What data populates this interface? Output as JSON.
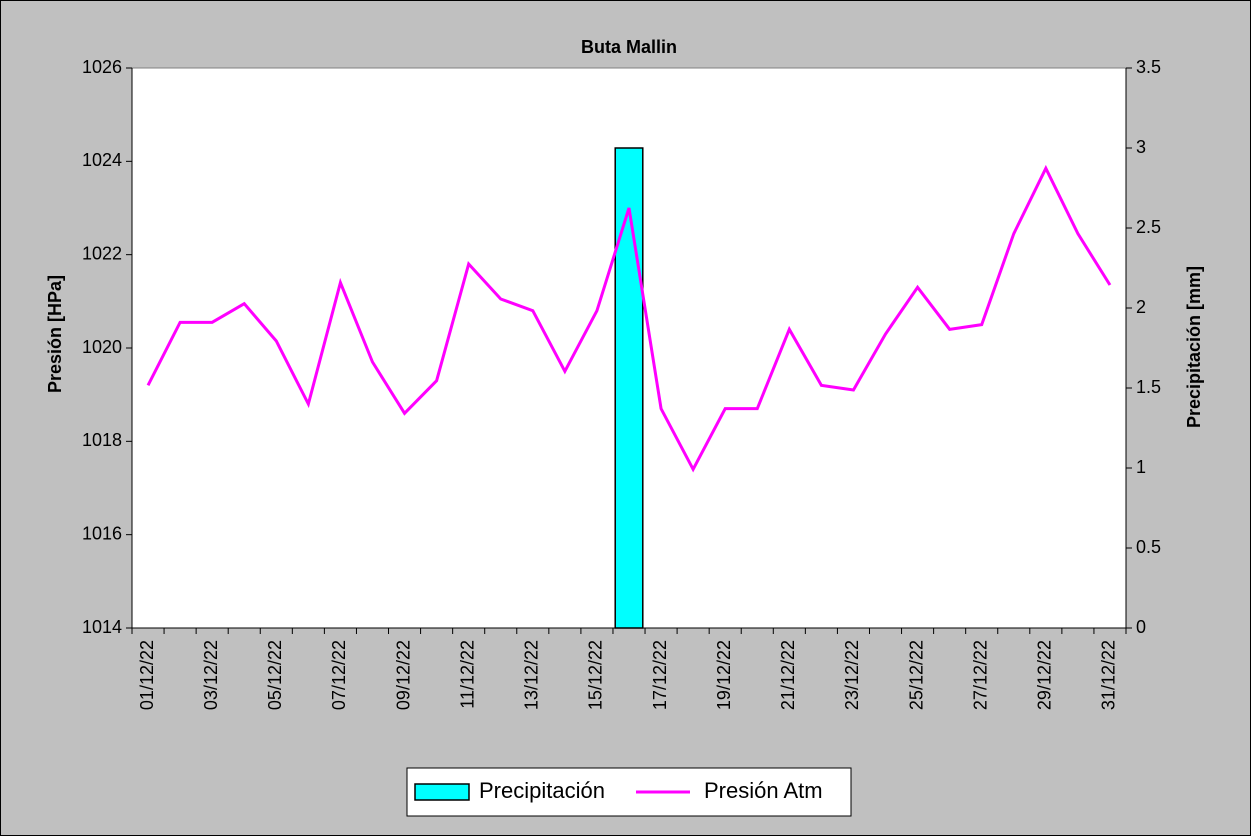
{
  "chart_data": {
    "type": "combo",
    "title": "Buta Mallin",
    "categories": [
      "01/12/22",
      null,
      "03/12/22",
      null,
      "05/12/22",
      null,
      "07/12/22",
      null,
      "09/12/22",
      null,
      "11/12/22",
      null,
      "13/12/22",
      null,
      "15/12/22",
      null,
      "17/12/22",
      null,
      "19/12/22",
      null,
      "21/12/22",
      null,
      "23/12/22",
      null,
      "25/12/22",
      null,
      "27/12/22",
      null,
      "29/12/22",
      null,
      "31/12/22"
    ],
    "series": [
      {
        "name": "Precipitación",
        "type": "bar",
        "axis": "y2",
        "color": "#00ffff",
        "values": [
          0,
          0,
          0,
          0,
          0,
          0,
          0,
          0,
          0,
          0,
          0,
          0,
          0,
          0,
          0,
          3,
          0,
          0,
          0,
          0,
          0,
          0,
          0,
          0,
          0,
          0,
          0,
          0,
          0,
          0,
          0
        ]
      },
      {
        "name": "Presión Atm",
        "type": "line",
        "color": "#ff00ff",
        "values": [
          1019.2,
          1020.55,
          1020.55,
          1020.95,
          1020.15,
          1018.8,
          1021.4,
          1019.7,
          1018.6,
          1019.3,
          1021.8,
          1021.05,
          1020.8,
          1019.5,
          1020.8,
          1023.0,
          1018.7,
          1017.4,
          1018.7,
          1018.7,
          1020.4,
          1019.2,
          1019.1,
          1020.3,
          1021.3,
          1020.4,
          1020.5,
          1022.45,
          1023.85,
          1022.45,
          1021.35
        ]
      }
    ],
    "ylabel": "Presión [HPa]",
    "y2label": "Precipitación [mm]",
    "ylim": [
      1014,
      1026
    ],
    "yticks": [
      1014,
      1016,
      1018,
      1020,
      1022,
      1024,
      1026
    ],
    "y2lim": [
      0,
      3.5
    ],
    "y2ticks": [
      0,
      0.5,
      1,
      1.5,
      2,
      2.5,
      3,
      3.5
    ],
    "legend": "bottom",
    "grid": false
  }
}
